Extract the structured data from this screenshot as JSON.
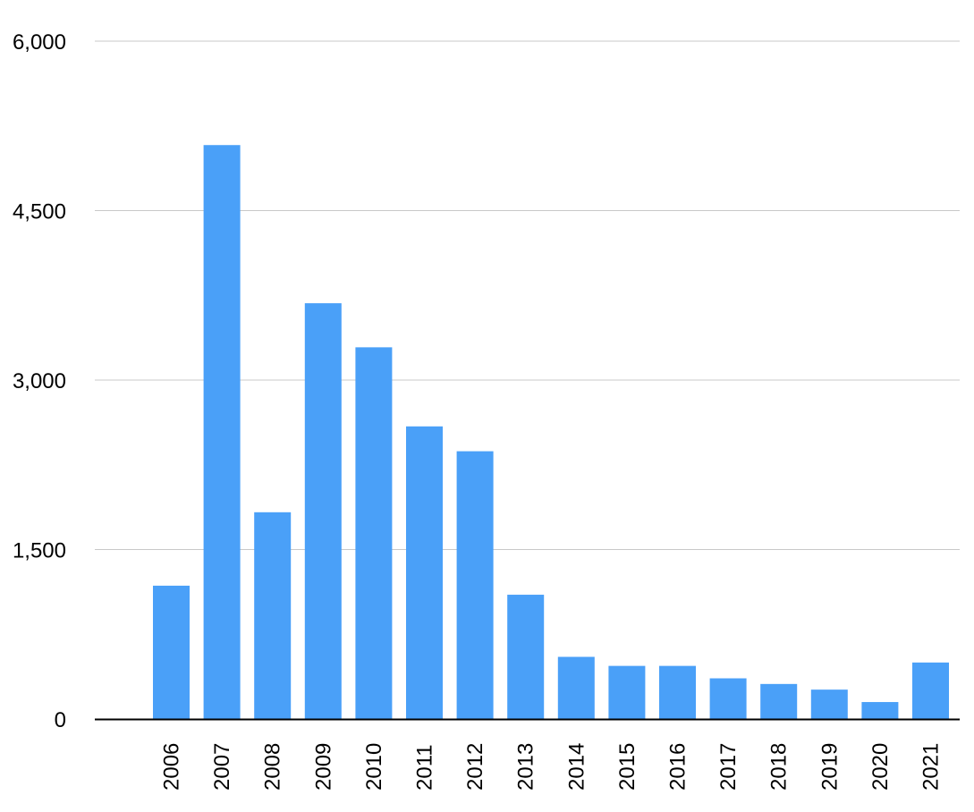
{
  "chart_data": {
    "type": "bar",
    "title": "",
    "xlabel": "",
    "ylabel": "",
    "categories": [
      "2006",
      "2007",
      "2008",
      "2009",
      "2010",
      "2011",
      "2012",
      "2013",
      "2014",
      "2015",
      "2016",
      "2017",
      "2018",
      "2019",
      "2020",
      "2021"
    ],
    "values": [
      1180,
      5080,
      1830,
      3680,
      3290,
      2590,
      2370,
      1100,
      550,
      470,
      470,
      360,
      310,
      260,
      150,
      500
    ],
    "ylim": [
      0,
      6000
    ],
    "yticks": [
      {
        "value": 0,
        "label": "0"
      },
      {
        "value": 1500,
        "label": "1,500"
      },
      {
        "value": 3000,
        "label": "3,000"
      },
      {
        "value": 4500,
        "label": "4,500"
      },
      {
        "value": 6000,
        "label": "6,000"
      }
    ],
    "grid": true,
    "legend": "none",
    "bar_color": "#4aa0f8",
    "grid_color": "#c8c8c8",
    "axis_color": "#000000"
  }
}
